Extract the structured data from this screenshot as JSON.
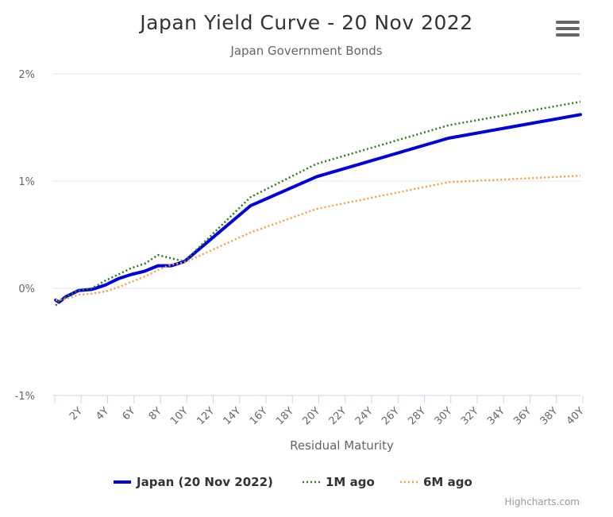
{
  "chart_data": {
    "type": "line",
    "title": "Japan Yield Curve - 20 Nov 2022",
    "subtitle": "Japan Government Bonds",
    "xlabel": "Residual Maturity",
    "ylabel": "",
    "ylim": [
      -1,
      2
    ],
    "y_tick_labels": [
      "2%",
      "1%",
      "0%",
      "-1%"
    ],
    "y_tick_values": [
      2,
      1,
      0,
      -1
    ],
    "x_tick_labels": [
      "2Y",
      "4Y",
      "6Y",
      "8Y",
      "10Y",
      "12Y",
      "14Y",
      "16Y",
      "18Y",
      "20Y",
      "22Y",
      "24Y",
      "26Y",
      "28Y",
      "30Y",
      "32Y",
      "34Y",
      "36Y",
      "38Y",
      "40Y"
    ],
    "x_tick_years": [
      2,
      4,
      6,
      8,
      10,
      12,
      14,
      16,
      18,
      20,
      22,
      24,
      26,
      28,
      30,
      32,
      34,
      36,
      38,
      40
    ],
    "xlim": [
      0,
      40
    ],
    "grid": true,
    "legend_position": "bottom-center",
    "series": [
      {
        "name": "Japan (20 Nov 2022)",
        "color": "#0000dd",
        "style": "solid",
        "x": [
          0.25,
          0.5,
          1,
          2,
          3,
          4,
          5,
          6,
          7,
          8,
          9,
          10,
          15,
          20,
          30,
          40
        ],
        "y": [
          -0.11,
          -0.13,
          -0.08,
          -0.02,
          -0.01,
          0.03,
          0.09,
          0.13,
          0.16,
          0.21,
          0.21,
          0.25,
          0.77,
          1.04,
          1.4,
          1.62
        ]
      },
      {
        "name": "1M ago",
        "color": "#2a7a16",
        "style": "dotted",
        "x": [
          0.25,
          0.5,
          1,
          2,
          3,
          4,
          5,
          6,
          7,
          8,
          9,
          10,
          15,
          20,
          30,
          40
        ],
        "y": [
          -0.16,
          -0.12,
          -0.08,
          -0.02,
          0.0,
          0.07,
          0.13,
          0.19,
          0.23,
          0.31,
          0.28,
          0.25,
          0.85,
          1.16,
          1.52,
          1.74
        ]
      },
      {
        "name": "6M ago",
        "color": "#f5a040",
        "style": "dotted",
        "x": [
          0.25,
          0.5,
          1,
          2,
          3,
          4,
          5,
          6,
          7,
          8,
          9,
          10,
          15,
          20,
          30,
          40
        ],
        "y": [
          -0.11,
          -0.11,
          -0.1,
          -0.06,
          -0.05,
          -0.03,
          0.01,
          0.06,
          0.11,
          0.17,
          0.22,
          0.24,
          0.52,
          0.74,
          0.99,
          1.05
        ]
      }
    ]
  },
  "credits": "Highcharts.com",
  "menu_icon": "hamburger-menu-icon"
}
